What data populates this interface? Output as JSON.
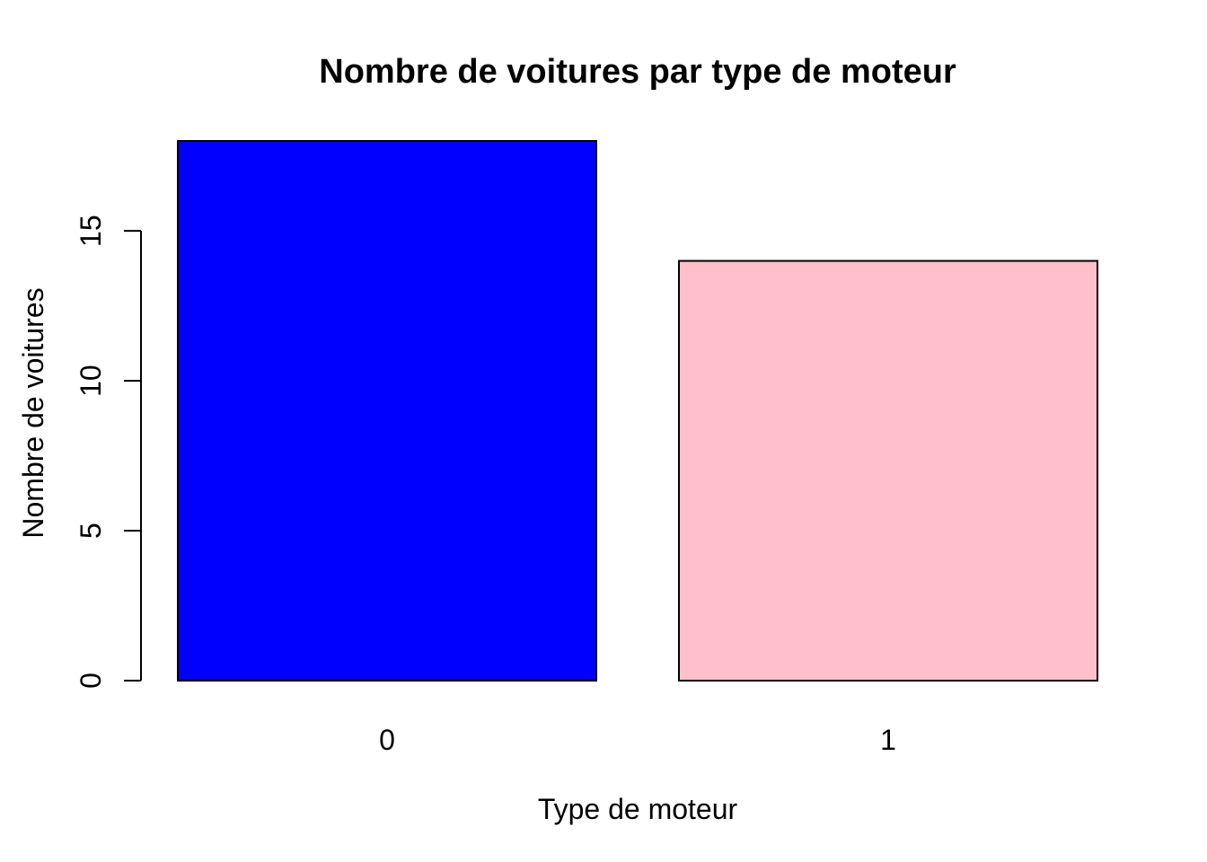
{
  "chart_data": {
    "type": "bar",
    "title": "Nombre de voitures par type de moteur",
    "xlabel": "Type de moteur",
    "ylabel": "Nombre de voitures",
    "categories": [
      "0",
      "1"
    ],
    "values": [
      18,
      14
    ],
    "colors": [
      "#0000ff",
      "#ffc0cb"
    ],
    "ylim": [
      0,
      18
    ],
    "yticks": [
      0,
      5,
      10,
      15
    ],
    "grid": false,
    "legend": "none"
  }
}
